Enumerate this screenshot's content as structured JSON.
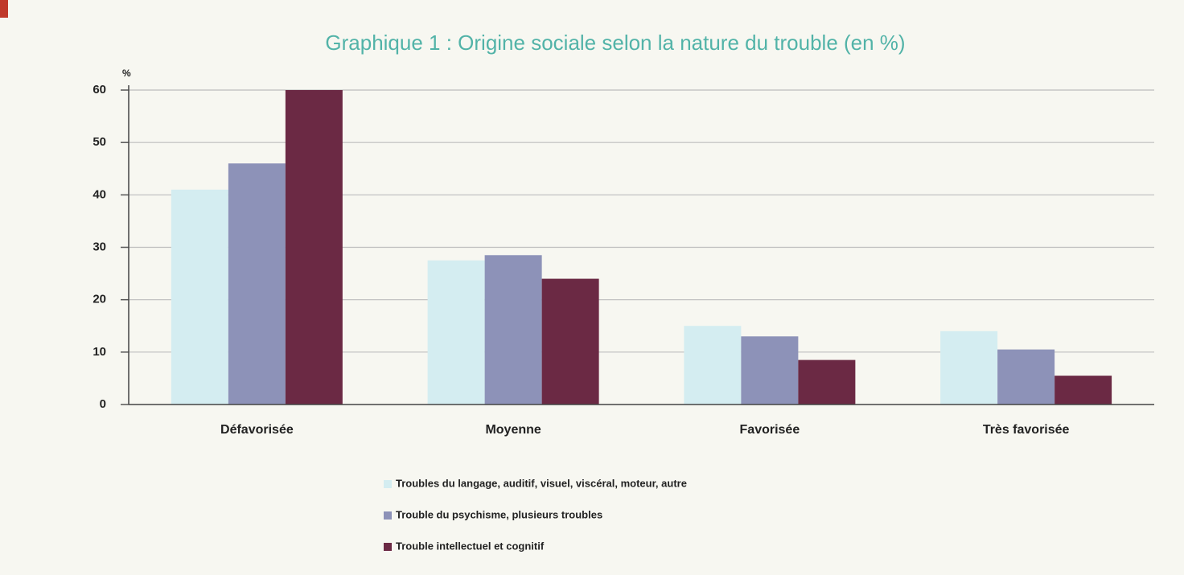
{
  "chart_data": {
    "type": "bar",
    "title": "Graphique 1 : Origine sociale selon la nature du trouble (en %)",
    "y_axis_label": "%",
    "categories": [
      "Défavorisée",
      "Moyenne",
      "Favorisée",
      "Très favorisée"
    ],
    "series": [
      {
        "name": "Troubles du langage, auditif, visuel, viscéral, moteur, autre",
        "color": "#d4edf1",
        "values": [
          41,
          27.5,
          15,
          14
        ]
      },
      {
        "name": "Trouble du psychisme, plusieurs troubles",
        "color": "#8d92b8",
        "values": [
          46,
          28.5,
          13,
          10.5
        ]
      },
      {
        "name": "Trouble intellectuel et cognitif",
        "color": "#6b2944",
        "values": [
          60,
          24,
          8.5,
          5.5
        ]
      }
    ],
    "ylim": [
      0,
      60
    ],
    "yticks": [
      0,
      10,
      20,
      30,
      40,
      50,
      60
    ],
    "grid": true
  }
}
